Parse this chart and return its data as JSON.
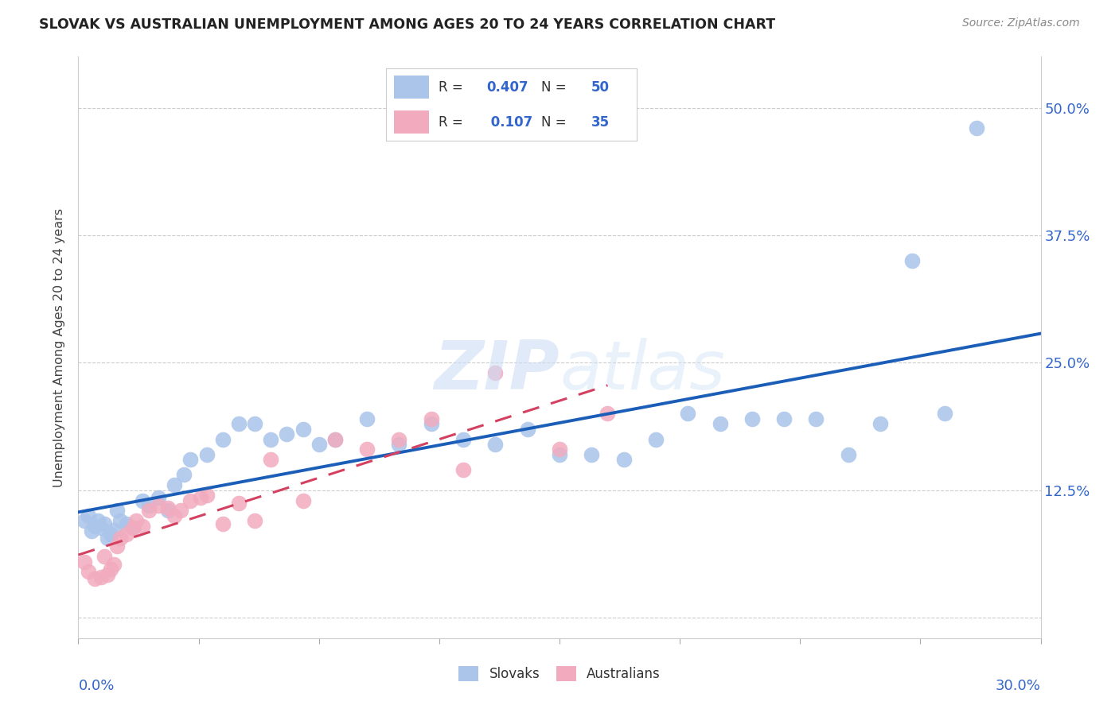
{
  "title": "SLOVAK VS AUSTRALIAN UNEMPLOYMENT AMONG AGES 20 TO 24 YEARS CORRELATION CHART",
  "source": "Source: ZipAtlas.com",
  "ylabel": "Unemployment Among Ages 20 to 24 years",
  "xlim": [
    0.0,
    0.3
  ],
  "ylim": [
    -0.02,
    0.55
  ],
  "ytick_positions": [
    0.0,
    0.125,
    0.25,
    0.375,
    0.5
  ],
  "ytick_labels": [
    "",
    "12.5%",
    "25.0%",
    "37.5%",
    "50.0%"
  ],
  "slovak_color": "#aac4ea",
  "australian_color": "#f2abbe",
  "trend_slovak_color": "#1a5eb8",
  "trend_australian_color": "#d44060",
  "watermark_color": "#ccddf5",
  "background_color": "#ffffff",
  "grid_color": "#cccccc",
  "slovak_scatter_x": [
    0.002,
    0.003,
    0.004,
    0.005,
    0.006,
    0.007,
    0.008,
    0.009,
    0.01,
    0.011,
    0.012,
    0.013,
    0.015,
    0.017,
    0.02,
    0.022,
    0.025,
    0.028,
    0.03,
    0.033,
    0.035,
    0.04,
    0.045,
    0.05,
    0.055,
    0.06,
    0.065,
    0.07,
    0.075,
    0.08,
    0.09,
    0.1,
    0.11,
    0.12,
    0.13,
    0.14,
    0.15,
    0.16,
    0.17,
    0.18,
    0.19,
    0.2,
    0.21,
    0.22,
    0.23,
    0.24,
    0.25,
    0.26,
    0.27,
    0.28
  ],
  "slovak_scatter_y": [
    0.095,
    0.1,
    0.085,
    0.09,
    0.095,
    0.088,
    0.092,
    0.078,
    0.082,
    0.086,
    0.105,
    0.095,
    0.092,
    0.088,
    0.115,
    0.11,
    0.118,
    0.105,
    0.13,
    0.14,
    0.155,
    0.16,
    0.175,
    0.19,
    0.19,
    0.175,
    0.18,
    0.185,
    0.17,
    0.175,
    0.195,
    0.17,
    0.19,
    0.175,
    0.17,
    0.185,
    0.16,
    0.16,
    0.155,
    0.175,
    0.2,
    0.19,
    0.195,
    0.195,
    0.195,
    0.16,
    0.19,
    0.35,
    0.2,
    0.48
  ],
  "australian_scatter_x": [
    0.002,
    0.003,
    0.005,
    0.007,
    0.008,
    0.009,
    0.01,
    0.011,
    0.012,
    0.013,
    0.015,
    0.017,
    0.018,
    0.02,
    0.022,
    0.025,
    0.028,
    0.03,
    0.032,
    0.035,
    0.038,
    0.04,
    0.045,
    0.05,
    0.055,
    0.06,
    0.07,
    0.08,
    0.09,
    0.1,
    0.11,
    0.12,
    0.13,
    0.15,
    0.165
  ],
  "australian_scatter_y": [
    0.055,
    0.045,
    0.038,
    0.04,
    0.06,
    0.042,
    0.048,
    0.052,
    0.07,
    0.078,
    0.082,
    0.088,
    0.095,
    0.09,
    0.105,
    0.11,
    0.108,
    0.1,
    0.105,
    0.115,
    0.118,
    0.12,
    0.092,
    0.112,
    0.095,
    0.155,
    0.115,
    0.175,
    0.165,
    0.175,
    0.195,
    0.145,
    0.24,
    0.165,
    0.2
  ],
  "legend_R1": "0.407",
  "legend_N1": "50",
  "legend_R2": "0.107",
  "legend_N2": "35",
  "legend_text_color": "#3366cc",
  "label_color": "#3366cc"
}
